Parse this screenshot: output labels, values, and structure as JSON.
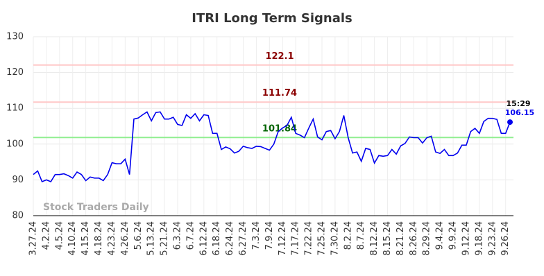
{
  "chart_data": {
    "type": "line",
    "title": "ITRI Long Term Signals",
    "watermark": "Stock Traders Daily",
    "categories": [
      "3.27.24",
      null,
      null,
      "4.2.24",
      null,
      null,
      "4.5.24",
      null,
      null,
      "4.10.24",
      null,
      null,
      "4.15.24",
      null,
      null,
      "4.18.24",
      null,
      null,
      "4.23.24",
      null,
      null,
      "4.26.24",
      null,
      null,
      "5.6.24",
      null,
      null,
      "5.13.24",
      null,
      null,
      "5.21.24",
      null,
      null,
      "6.3.24",
      null,
      null,
      "6.7.24",
      null,
      null,
      "6.12.24",
      null,
      null,
      "6.18.24",
      null,
      null,
      "6.24.24",
      null,
      null,
      "6.27.24",
      null,
      null,
      "7.3.24",
      null,
      null,
      "7.9.24",
      null,
      null,
      "7.12.24",
      null,
      null,
      "7.17.24",
      null,
      null,
      "7.22.24",
      null,
      null,
      "7.25.24",
      null,
      null,
      "7.30.24",
      null,
      null,
      "8.2.24",
      null,
      null,
      "8.7.24",
      null,
      null,
      "8.12.24",
      null,
      null,
      "8.15.24",
      null,
      null,
      "8.21.24",
      null,
      null,
      "8.26.24",
      null,
      null,
      "8.29.24",
      null,
      null,
      "9.4.24",
      null,
      null,
      "9.9.24",
      null,
      null,
      "9.12.24",
      null,
      null,
      "9.18.24",
      null,
      null,
      "9.23.24",
      null,
      null,
      "9.26.24",
      null
    ],
    "series": [
      {
        "name": "ITRI",
        "color": "#0000ee",
        "values": [
          91.5,
          92.5,
          89.5,
          90,
          89.5,
          91.5,
          91.5,
          91.7,
          91.2,
          90.5,
          92.2,
          91.5,
          89.8,
          90.8,
          90.5,
          90.5,
          89.8,
          91.5,
          94.8,
          94.5,
          94.5,
          95.8,
          91.5,
          107,
          107.3,
          108.2,
          109,
          106.5,
          108.8,
          109,
          107,
          107,
          107.5,
          105.5,
          105.2,
          108.2,
          107.2,
          108.5,
          106.5,
          108.2,
          108,
          103,
          103,
          98.5,
          99.2,
          98.7,
          97.5,
          98,
          99.4,
          99,
          98.8,
          99.4,
          99.3,
          98.8,
          98.3,
          100,
          103.5,
          104.5,
          105.2,
          107.5,
          103,
          102.5,
          101.8,
          104.5,
          107,
          102,
          101.2,
          103.5,
          103.8,
          101.5,
          103.5,
          108,
          101.8,
          97.5,
          97.8,
          95.2,
          98.8,
          98.5,
          94.7,
          96.8,
          96.6,
          96.8,
          98.5,
          97.2,
          99.5,
          100.2,
          102,
          101.8,
          101.8,
          100.3,
          101.8,
          102.2,
          97.8,
          97.4,
          98.5,
          96.8,
          96.8,
          97.5,
          99.7,
          99.7,
          103.5,
          104.4,
          103,
          106.3,
          107.2,
          107.2,
          106.9,
          103,
          103,
          106.15
        ]
      }
    ],
    "last_time_label": "15:29",
    "levels": [
      {
        "value": 122.1,
        "color": "#ffc8c8",
        "label_color": "#8b0000"
      },
      {
        "value": 111.74,
        "color": "#ffc8c8",
        "label_color": "#8b0000"
      },
      {
        "value": 101.84,
        "color": "#90ee90",
        "label_color": "#006400"
      }
    ],
    "ylim": [
      80,
      130
    ],
    "yticks": [
      80,
      90,
      100,
      110,
      120,
      130
    ],
    "grid": true
  }
}
